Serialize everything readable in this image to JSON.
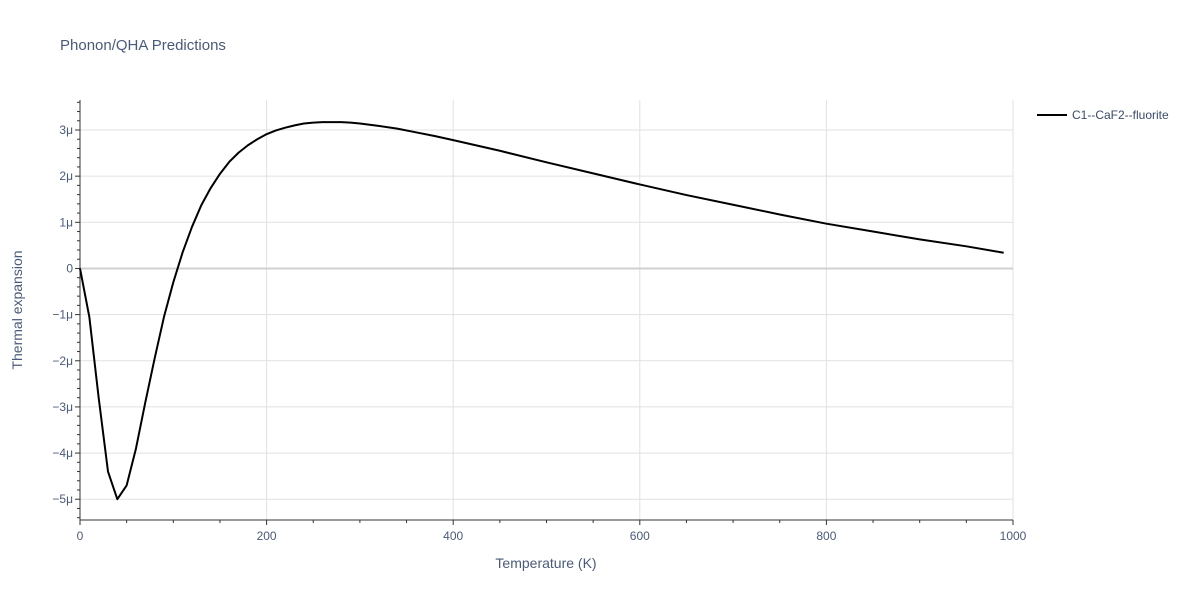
{
  "chart_data": {
    "type": "line",
    "title": "Phonon/QHA Predictions",
    "xlabel": "Temperature (K)",
    "ylabel": "Thermal expansion",
    "xlim": [
      0,
      1000
    ],
    "ylim": [
      -5.45e-06,
      3.65e-06
    ],
    "x_ticks": [
      0,
      200,
      400,
      600,
      800,
      1000
    ],
    "x_tick_labels": [
      "0",
      "200",
      "400",
      "600",
      "800",
      "1000"
    ],
    "y_ticks": [
      -5e-06,
      -4e-06,
      -3e-06,
      -2e-06,
      -1e-06,
      0,
      1e-06,
      2e-06,
      3e-06
    ],
    "y_tick_labels": [
      "−5μ",
      "−4μ",
      "−3μ",
      "−2μ",
      "−1μ",
      "0",
      "1μ",
      "2μ",
      "3μ"
    ],
    "grid": true,
    "legend_position": "top-right",
    "series": [
      {
        "name": "C1--CaF2--fluorite",
        "color": "#000000",
        "x": [
          0,
          10,
          20,
          30,
          40,
          50,
          60,
          70,
          80,
          90,
          100,
          110,
          120,
          130,
          140,
          150,
          160,
          170,
          180,
          190,
          200,
          210,
          220,
          230,
          240,
          250,
          260,
          270,
          280,
          290,
          300,
          320,
          340,
          360,
          380,
          400,
          450,
          500,
          550,
          600,
          650,
          700,
          750,
          800,
          850,
          900,
          950,
          990
        ],
        "y": [
          0,
          -1.05e-06,
          -2.8e-06,
          -4.4e-06,
          -5e-06,
          -4.7e-06,
          -3.9e-06,
          -2.9e-06,
          -1.95e-06,
          -1.05e-06,
          -3e-07,
          3.5e-07,
          9e-07,
          1.37e-06,
          1.74e-06,
          2.05e-06,
          2.31e-06,
          2.51e-06,
          2.67e-06,
          2.8e-06,
          2.91e-06,
          2.99e-06,
          3.05e-06,
          3.1e-06,
          3.14e-06,
          3.16e-06,
          3.17e-06,
          3.17e-06,
          3.17e-06,
          3.16e-06,
          3.14e-06,
          3.09e-06,
          3.03e-06,
          2.95e-06,
          2.87e-06,
          2.78e-06,
          2.55e-06,
          2.3e-06,
          2.06e-06,
          1.82e-06,
          1.59e-06,
          1.38e-06,
          1.17e-06,
          9.7e-07,
          8e-07,
          6.3e-07,
          4.8e-07,
          3.4e-07
        ]
      }
    ]
  }
}
